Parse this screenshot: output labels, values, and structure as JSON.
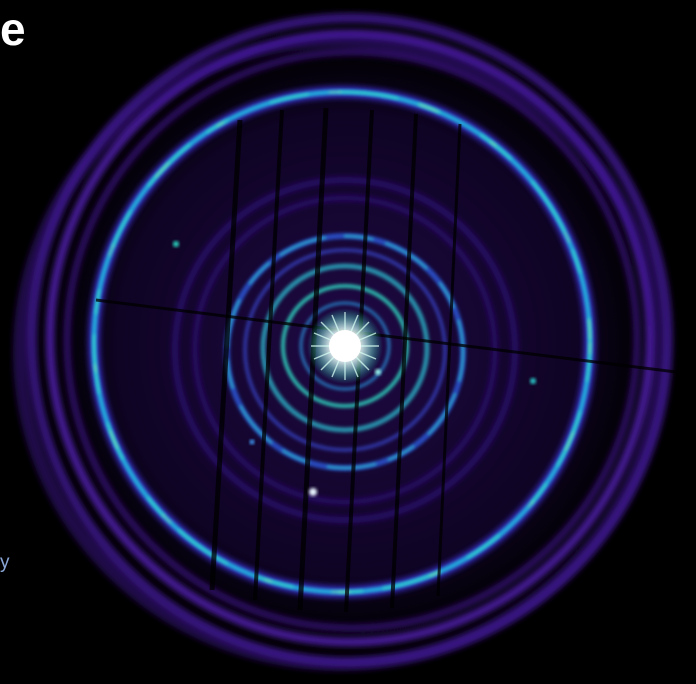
{
  "image": {
    "subject": "x-ray-ring-echo",
    "colors": {
      "background": "#000000",
      "outer_ring": "#5a1fb8",
      "bright_ring": "#29d4c8",
      "inner_ring": "#3a8cf0",
      "core": "#ffffff",
      "noise": "#6a2ad0"
    }
  },
  "overlay": {
    "title_fragment": "e",
    "side_fragment": "y"
  }
}
